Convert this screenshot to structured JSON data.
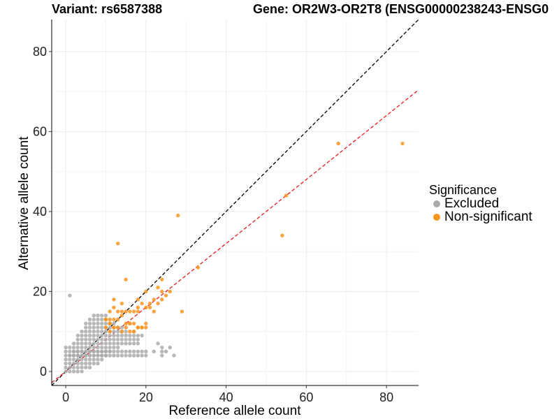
{
  "header": {
    "variant": "Variant: rs6587388",
    "gene": "Gene: OR2W3-OR2T8 (ENSG00000238243-ENSG0"
  },
  "legend": {
    "title": "Significance",
    "items": [
      {
        "label": "Excluded",
        "color": "#aaaaaa"
      },
      {
        "label": "Non-significant",
        "color": "#f7941d"
      }
    ]
  },
  "chart_data": {
    "type": "scatter",
    "xlabel": "Reference allele count",
    "ylabel": "Alternative allele count",
    "xlim": [
      -3.5,
      88
    ],
    "ylim": [
      -3.5,
      88
    ],
    "x_ticks": [
      0,
      20,
      40,
      60,
      80
    ],
    "y_ticks": [
      0,
      20,
      40,
      60,
      80
    ],
    "grid": true,
    "legend_position": "right",
    "reference_lines": [
      {
        "name": "y = x",
        "slope": 1,
        "intercept": 0,
        "color": "#000000"
      },
      {
        "name": "fit",
        "slope": 0.8,
        "intercept": 0,
        "color": "#e41a1c"
      }
    ],
    "series": [
      {
        "name": "Excluded",
        "color": "#aaaaaa",
        "x": [
          1,
          0,
          1,
          2,
          3,
          4,
          0,
          1,
          2,
          3,
          4,
          5,
          6,
          0,
          1,
          2,
          3,
          4,
          5,
          6,
          7,
          8,
          0,
          1,
          2,
          3,
          4,
          5,
          6,
          7,
          8,
          9,
          0,
          1,
          2,
          3,
          4,
          5,
          6,
          7,
          8,
          9,
          10,
          0,
          1,
          2,
          3,
          4,
          5,
          6,
          7,
          8,
          9,
          10,
          11,
          0,
          1,
          2,
          3,
          4,
          5,
          6,
          7,
          8,
          9,
          10,
          11,
          12,
          13,
          1,
          2,
          3,
          4,
          5,
          6,
          7,
          8,
          9,
          10,
          11,
          12,
          13,
          14,
          15,
          16,
          17,
          18,
          19,
          20,
          24,
          27,
          2,
          3,
          4,
          5,
          6,
          7,
          8,
          9,
          10,
          11,
          12,
          13,
          14,
          15,
          16,
          17,
          18,
          19,
          20,
          22,
          24,
          25,
          26,
          2,
          3,
          4,
          5,
          6,
          7,
          8,
          9,
          10,
          11,
          12,
          13,
          14,
          15,
          16,
          17,
          18,
          23,
          24,
          3,
          4,
          5,
          6,
          7,
          8,
          9,
          10,
          11,
          12,
          13,
          14,
          15,
          16,
          17,
          18,
          3,
          4,
          5,
          6,
          7,
          8,
          9,
          10,
          11,
          12,
          13,
          14,
          15,
          16,
          17,
          18,
          19,
          4,
          5,
          6,
          7,
          8,
          9,
          10,
          11,
          12,
          13,
          14,
          15,
          17,
          5,
          6,
          7,
          8,
          9,
          10,
          11,
          12,
          13,
          14,
          5,
          6,
          7,
          8,
          9,
          10,
          11,
          12,
          6,
          7,
          8,
          9,
          10,
          7,
          8,
          9,
          10
        ],
        "y": [
          19,
          0,
          0,
          0,
          0,
          0,
          1,
          1,
          1,
          1,
          1,
          1,
          1,
          2,
          2,
          2,
          2,
          2,
          2,
          2,
          2,
          2,
          3,
          3,
          3,
          3,
          3,
          3,
          3,
          3,
          3,
          3,
          4,
          4,
          4,
          4,
          4,
          4,
          4,
          4,
          4,
          4,
          4,
          5,
          5,
          5,
          5,
          5,
          5,
          5,
          5,
          5,
          5,
          5,
          5,
          6,
          6,
          6,
          6,
          6,
          6,
          6,
          6,
          6,
          6,
          6,
          6,
          6,
          6,
          4,
          4,
          4,
          4,
          4,
          4,
          4,
          4,
          4,
          4,
          4,
          4,
          4,
          4,
          4,
          4,
          4,
          4,
          4,
          4,
          4,
          4,
          5,
          5,
          5,
          5,
          5,
          5,
          5,
          5,
          5,
          5,
          5,
          5,
          5,
          5,
          5,
          5,
          5,
          5,
          5,
          5,
          5,
          5,
          6,
          7,
          7,
          7,
          7,
          7,
          7,
          7,
          7,
          7,
          7,
          7,
          7,
          7,
          7,
          7,
          7,
          7,
          7,
          6,
          8,
          8,
          8,
          8,
          8,
          8,
          8,
          8,
          8,
          8,
          8,
          8,
          8,
          8,
          8,
          8,
          9,
          9,
          9,
          9,
          9,
          9,
          9,
          9,
          9,
          9,
          9,
          9,
          9,
          9,
          9,
          9,
          9,
          10,
          10,
          10,
          10,
          10,
          10,
          10,
          10,
          10,
          10,
          10,
          10,
          10,
          11,
          11,
          11,
          11,
          11,
          11,
          11,
          11,
          11,
          11,
          12,
          12,
          12,
          12,
          12,
          12,
          12,
          12,
          13,
          13,
          13,
          13,
          13,
          14,
          14,
          14,
          14
        ]
      },
      {
        "name": "Non-significant",
        "color": "#f7941d",
        "x": [
          84,
          68,
          55,
          54,
          28,
          33,
          13,
          15,
          29,
          24,
          23,
          24,
          25,
          26,
          21,
          22,
          20,
          19,
          18,
          17,
          16,
          15,
          14,
          13,
          12,
          11,
          10,
          11,
          12,
          13,
          14,
          15,
          16,
          17,
          18,
          19,
          20,
          20,
          18,
          19,
          17,
          16,
          15,
          14,
          13,
          12,
          11,
          10,
          20,
          21,
          22,
          23,
          24,
          10,
          11,
          12,
          11,
          12,
          14,
          16,
          18,
          18
        ],
        "y": [
          57,
          57,
          44,
          34,
          39,
          26,
          32,
          23,
          15,
          23,
          21,
          20,
          19,
          20,
          17,
          18,
          20,
          17,
          18,
          15,
          15,
          15,
          15,
          15,
          16,
          15,
          13,
          13,
          13,
          13,
          14,
          12,
          12,
          12,
          11,
          11,
          11,
          12,
          11,
          11,
          10,
          10,
          11,
          10,
          11,
          11,
          12,
          11,
          16,
          16,
          15,
          17,
          18,
          13,
          12,
          18,
          10,
          11,
          17,
          12,
          15,
          16
        ]
      }
    ]
  }
}
